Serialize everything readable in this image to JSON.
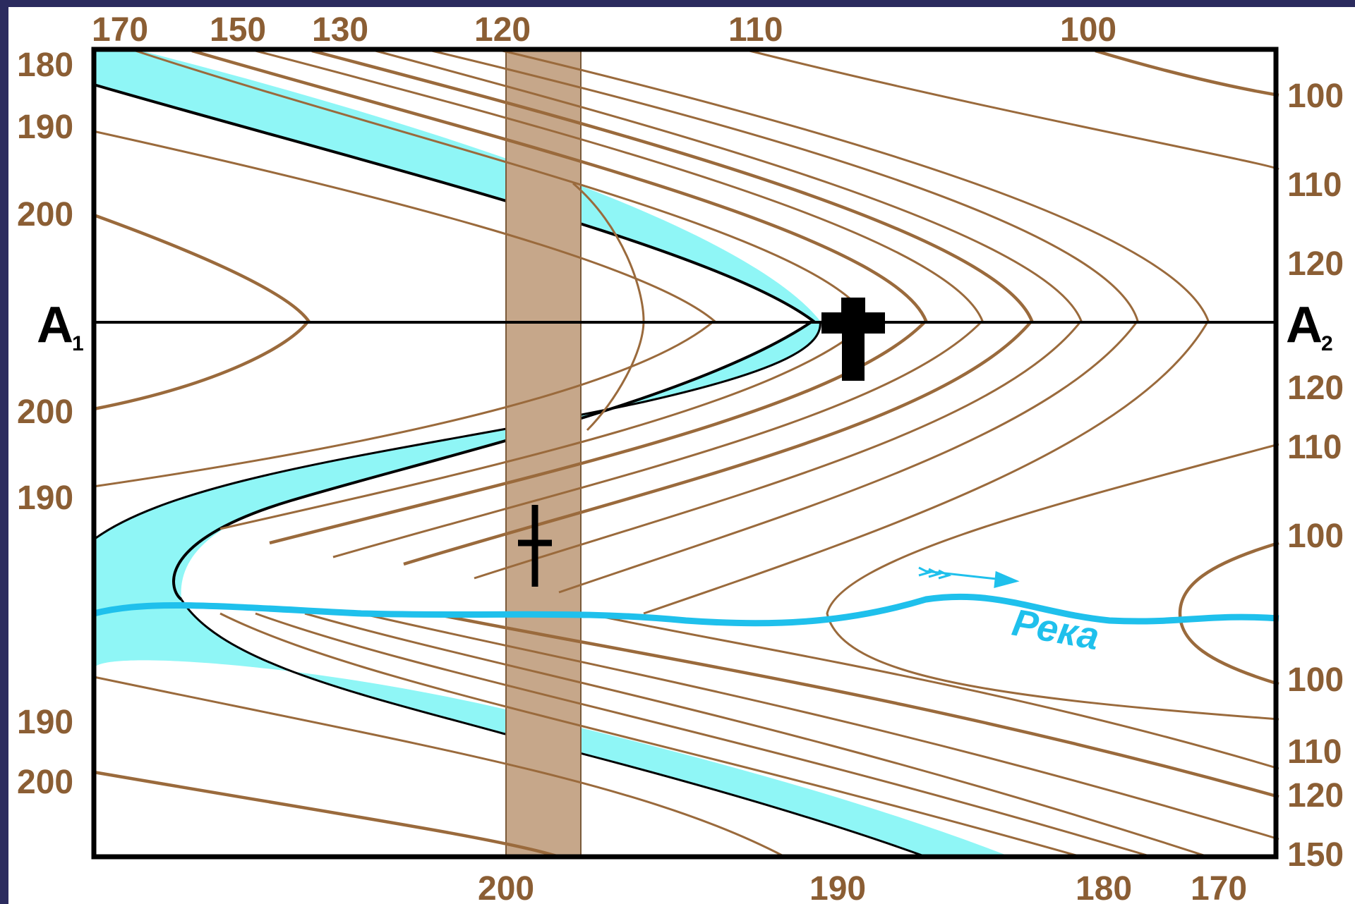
{
  "top_labels": [
    "170",
    "150",
    "130",
    "120",
    "110",
    "100"
  ],
  "left_labels": [
    "180",
    "190",
    "200",
    "200",
    "190",
    "190",
    "200"
  ],
  "right_labels": [
    "100",
    "110",
    "120",
    "120",
    "110",
    "100",
    "100",
    "110",
    "120",
    "150"
  ],
  "bottom_labels": [
    "200",
    "190",
    "180",
    "170"
  ],
  "point_a1": "A",
  "point_a1_sub": "1",
  "point_a2": "A",
  "point_a2_sub": "2",
  "river_label": "Река",
  "colors": {
    "contour": "#9a6a3c",
    "label": "#8b5e34",
    "band_fill": "#8ff6f6",
    "road_fill": "#c6a78a",
    "river": "#1fc0ec",
    "frame": "#000000",
    "background": "#2b2b5e"
  },
  "icons": [
    "church-cross-icon",
    "grave-cross-icon",
    "river-flow-arrow-icon"
  ]
}
